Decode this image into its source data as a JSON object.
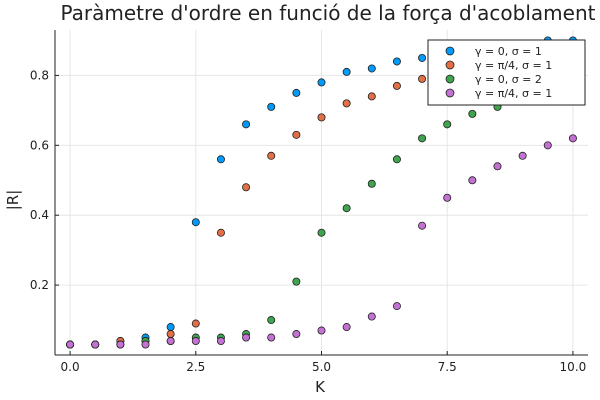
{
  "chart_data": {
    "type": "scatter",
    "title": "Paràmetre d'ordre en funció de la força d'acoblament",
    "xlabel": "K",
    "ylabel": "|R|",
    "xlim": [
      -0.3,
      10.3
    ],
    "ylim": [
      0.0,
      0.93
    ],
    "xticks": [
      0,
      2.5,
      5,
      7.5,
      10
    ],
    "xtick_labels": [
      "0.0",
      "2.5",
      "5.0",
      "7.5",
      "10.0"
    ],
    "yticks": [
      0.2,
      0.4,
      0.6,
      0.8
    ],
    "ytick_labels": [
      "0.2",
      "0.4",
      "0.6",
      "0.8"
    ],
    "grid": true,
    "legend_position": "top-right",
    "series": [
      {
        "name": "γ = 0,   σ = 1",
        "color": "#009AFA",
        "x": [
          0,
          0.5,
          1,
          1.5,
          2,
          2.5,
          3,
          3.5,
          4,
          4.5,
          5,
          5.5,
          6,
          6.5,
          7,
          7.5,
          8,
          8.5,
          9,
          9.5,
          10
        ],
        "y": [
          0.03,
          0.03,
          0.04,
          0.05,
          0.08,
          0.38,
          0.56,
          0.66,
          0.71,
          0.75,
          0.78,
          0.81,
          0.82,
          0.84,
          0.85,
          0.86,
          0.87,
          0.88,
          0.89,
          0.9,
          0.9
        ]
      },
      {
        "name": "γ = π/4, σ = 1",
        "color": "#E36F47",
        "x": [
          0,
          0.5,
          1,
          1.5,
          2,
          2.5,
          3,
          3.5,
          4,
          4.5,
          5,
          5.5,
          6,
          6.5,
          7,
          7.5,
          8,
          8.5,
          9,
          9.5,
          10
        ],
        "y": [
          0.03,
          0.03,
          0.04,
          0.04,
          0.06,
          0.09,
          0.35,
          0.48,
          0.57,
          0.63,
          0.68,
          0.72,
          0.74,
          0.77,
          0.79,
          0.81,
          0.82,
          0.83,
          0.84,
          0.85,
          0.86
        ]
      },
      {
        "name": "γ = 0,   σ = 2",
        "color": "#3EA44E",
        "x": [
          0,
          0.5,
          1,
          1.5,
          2,
          2.5,
          3,
          3.5,
          4,
          4.5,
          5,
          5.5,
          6,
          6.5,
          7,
          7.5,
          8,
          8.5,
          9,
          9.5,
          10
        ],
        "y": [
          0.03,
          0.03,
          0.03,
          0.04,
          0.04,
          0.05,
          0.05,
          0.06,
          0.1,
          0.21,
          0.35,
          0.42,
          0.49,
          0.56,
          0.62,
          0.66,
          0.69,
          0.71,
          0.73,
          0.75,
          0.77
        ]
      },
      {
        "name": "γ = π/4, σ = 1",
        "color": "#C371D2",
        "x": [
          0,
          0.5,
          1,
          1.5,
          2,
          2.5,
          3,
          3.5,
          4,
          4.5,
          5,
          5.5,
          6,
          6.5,
          7,
          7.5,
          8,
          8.5,
          9,
          9.5,
          10
        ],
        "y": [
          0.03,
          0.03,
          0.03,
          0.03,
          0.04,
          0.04,
          0.04,
          0.05,
          0.05,
          0.06,
          0.07,
          0.08,
          0.11,
          0.14,
          0.37,
          0.45,
          0.5,
          0.54,
          0.57,
          0.6,
          0.62
        ]
      }
    ]
  }
}
